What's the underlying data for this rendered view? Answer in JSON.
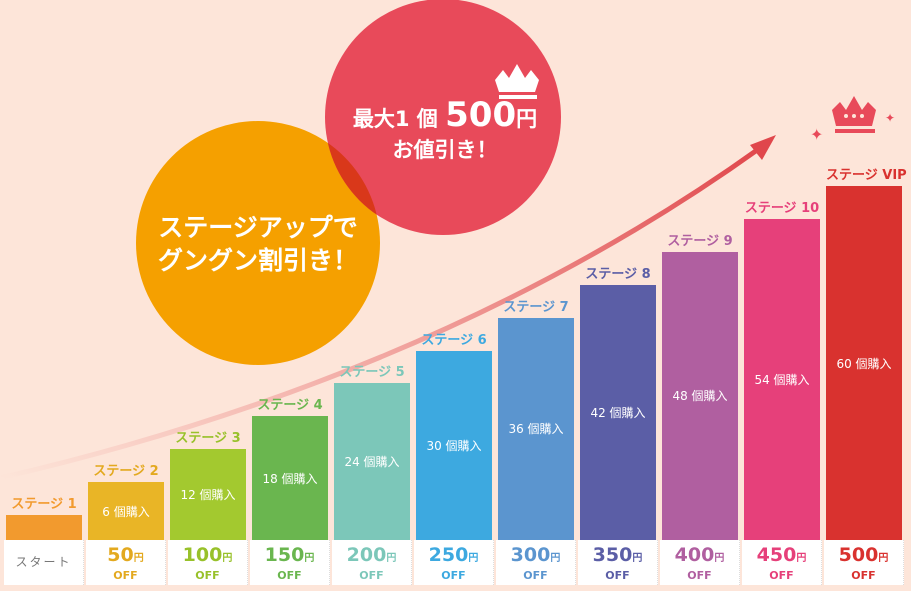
{
  "bubbles": {
    "orange_line1": "ステージアップで",
    "orange_line2": "グングン割引き！",
    "red_line1_prefix": "最大1 個",
    "red_amount": "500",
    "red_yen": "円",
    "red_line2": "お値引き！"
  },
  "colors": {
    "background": "#fde5d9",
    "orange_bubble": "#f5a000",
    "red_bubble": "#e84a5a",
    "arrow": "#e0474c"
  },
  "icons": [
    "crown-icon",
    "sparkle-icon",
    "arrow-icon"
  ],
  "chart_data": {
    "type": "bar",
    "categories": [
      "ステージ 1",
      "ステージ 2",
      "ステージ 3",
      "ステージ 4",
      "ステージ 5",
      "ステージ 6",
      "ステージ 7",
      "ステージ 8",
      "ステージ 9",
      "ステージ 10",
      "ステージ VIP"
    ],
    "purchase_labels": [
      "",
      "6 個購入",
      "12 個購入",
      "18 個購入",
      "24 個購入",
      "30 個購入",
      "36 個購入",
      "42 個購入",
      "48 個購入",
      "54 個購入",
      "60 個購入"
    ],
    "purchases": [
      0,
      6,
      12,
      18,
      24,
      30,
      36,
      42,
      48,
      54,
      60
    ],
    "discounts": [
      "スタート",
      "50",
      "100",
      "150",
      "200",
      "250",
      "300",
      "350",
      "400",
      "450",
      "500"
    ],
    "discount_unit": "円",
    "discount_suffix": "OFF",
    "colors": [
      "#f29a2e",
      "#e9b526",
      "#a3c92f",
      "#6ab64f",
      "#7cc7b9",
      "#3da9e0",
      "#5b95cf",
      "#5b5ea6",
      "#b05fa0",
      "#e6407a",
      "#d9322f"
    ],
    "label_colors": [
      "#f29a2e",
      "#e3a91f",
      "#98c12a",
      "#6ab64f",
      "#7cc7b9",
      "#3da9e0",
      "#5b95cf",
      "#5b5ea6",
      "#b05fa0",
      "#e6407a",
      "#d9322f"
    ]
  }
}
